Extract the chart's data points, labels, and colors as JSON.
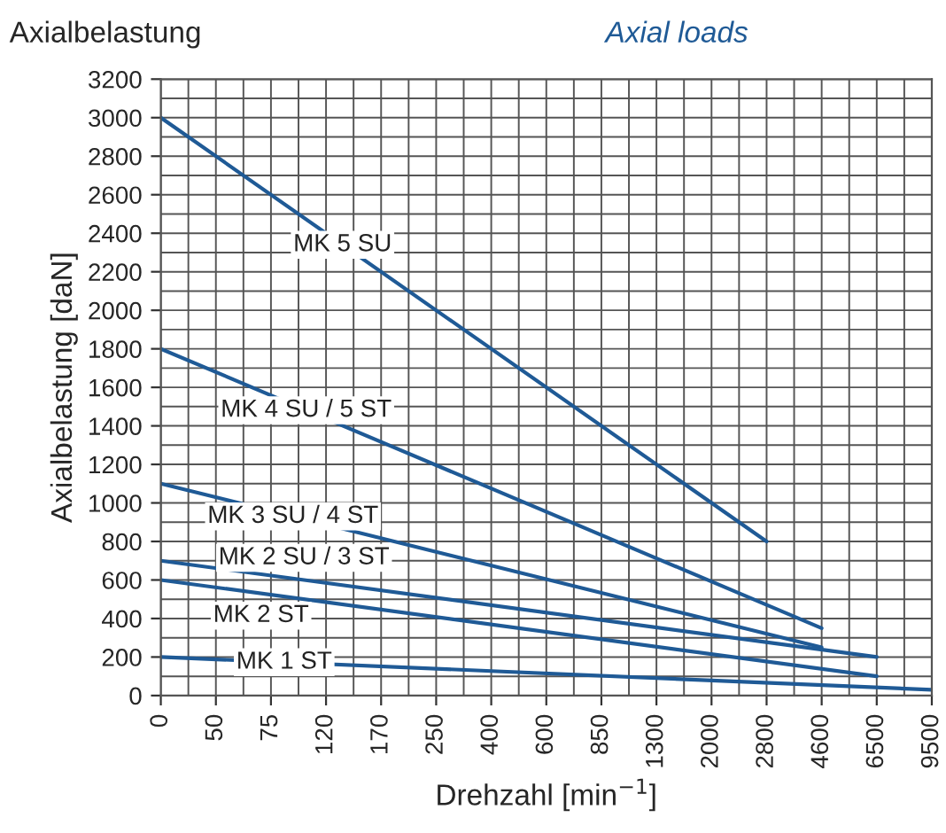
{
  "chart_data": {
    "type": "line",
    "title": "Axialbelastung",
    "subtitle": "Axial loads",
    "xlabel": "Drehzahl [min$^{−1}$]",
    "ylabel": "Axialbelastung [daN]",
    "categories": [
      "0",
      "50",
      "75",
      "120",
      "170",
      "250",
      "400",
      "600",
      "850",
      "1300",
      "2000",
      "2800",
      "4600",
      "6500",
      "9500"
    ],
    "series": [
      {
        "name": "MK 5 SU",
        "color": "#1f5a96",
        "values": [
          3000,
          null,
          null,
          null,
          null,
          null,
          null,
          null,
          null,
          null,
          null,
          800,
          null,
          null,
          null
        ]
      },
      {
        "name": "MK 4 SU / 5 ST",
        "color": "#1f5a96",
        "values": [
          1800,
          null,
          null,
          null,
          null,
          null,
          null,
          null,
          null,
          null,
          null,
          null,
          350,
          null,
          null
        ]
      },
      {
        "name": "MK 3 SU / 4 ST",
        "color": "#1f5a96",
        "values": [
          1100,
          null,
          null,
          null,
          null,
          null,
          null,
          null,
          null,
          null,
          null,
          null,
          250,
          null,
          null
        ]
      },
      {
        "name": "MK 2 SU / 3 ST",
        "color": "#1f5a96",
        "values": [
          700,
          null,
          null,
          null,
          null,
          null,
          null,
          null,
          null,
          null,
          null,
          null,
          null,
          200,
          null
        ]
      },
      {
        "name": "MK 2 ST",
        "color": "#1f5a96",
        "values": [
          600,
          null,
          null,
          null,
          null,
          null,
          null,
          null,
          null,
          null,
          null,
          null,
          null,
          100,
          null
        ]
      },
      {
        "name": "MK 1 ST",
        "color": "#1f5a96",
        "values": [
          200,
          null,
          null,
          null,
          null,
          null,
          null,
          null,
          null,
          null,
          null,
          null,
          null,
          null,
          30
        ]
      }
    ],
    "ylim": [
      0,
      3200
    ],
    "yticks": [
      0,
      200,
      400,
      600,
      800,
      1000,
      1200,
      1400,
      1600,
      1800,
      2000,
      2200,
      2400,
      2600,
      2800,
      3000,
      3200
    ],
    "grid": true,
    "legend": false,
    "marker": "none",
    "line_style": "solid"
  }
}
